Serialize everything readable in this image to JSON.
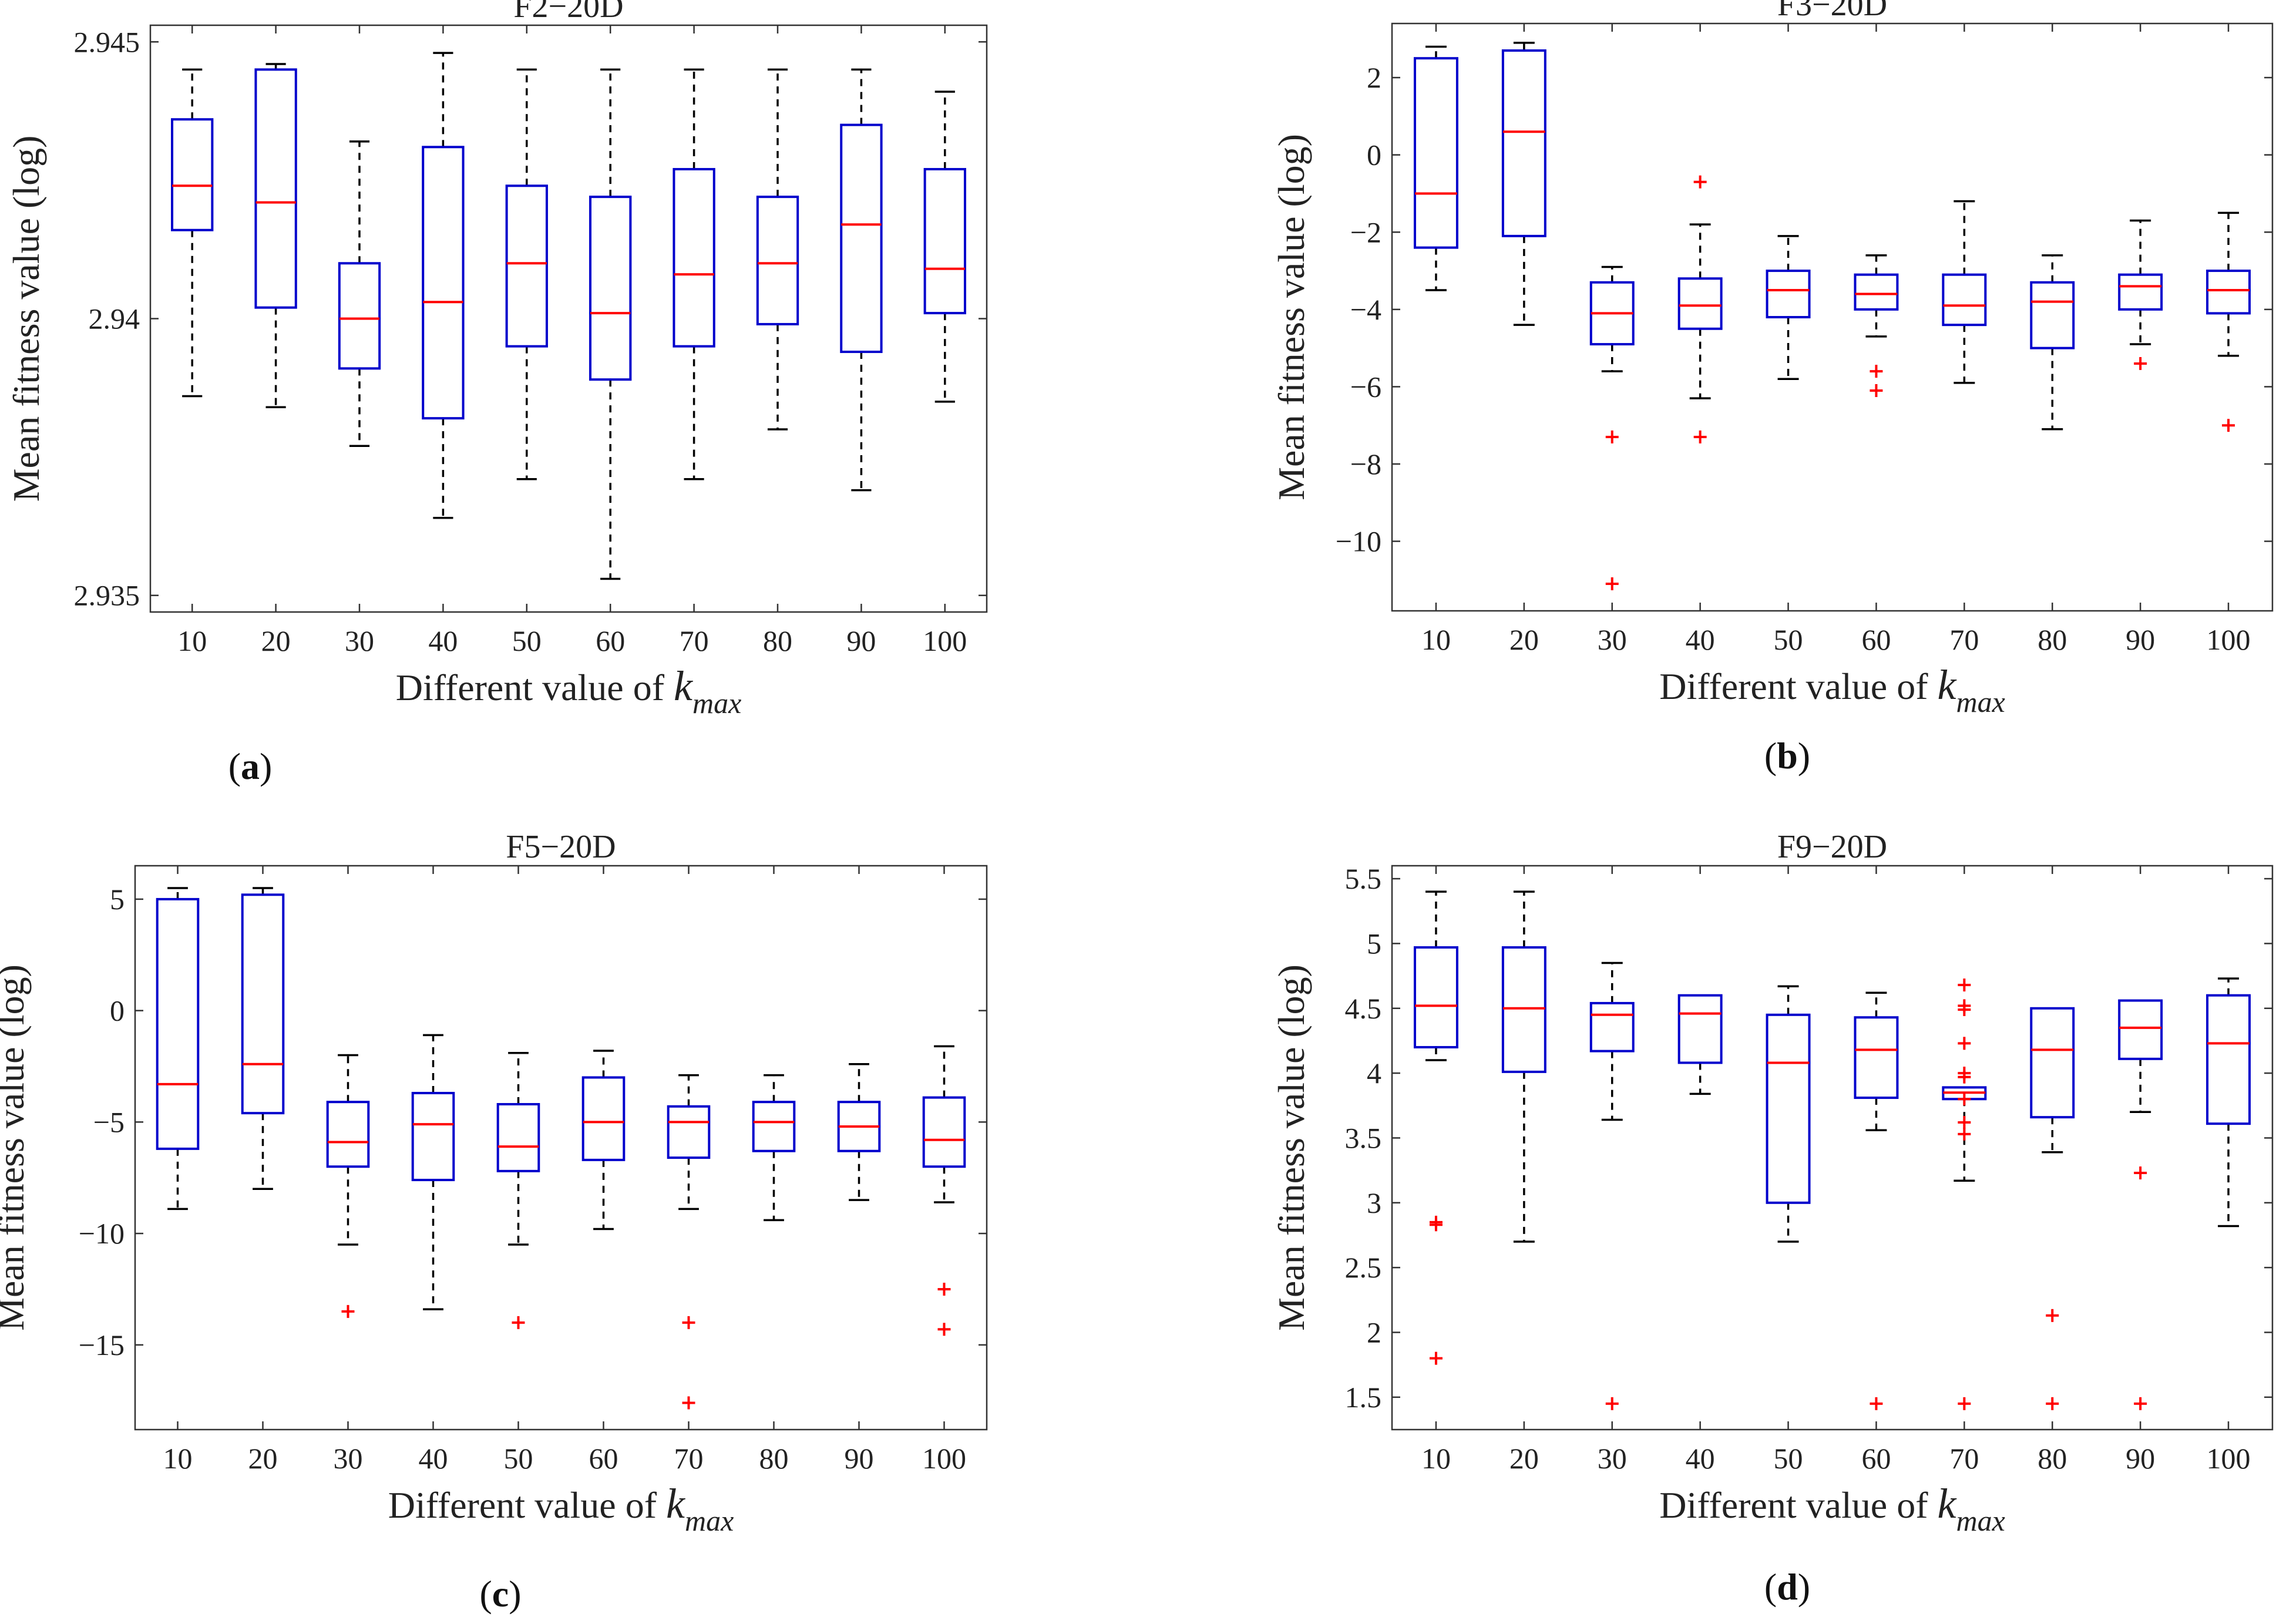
{
  "figure": {
    "captions": [
      "(a)",
      "(b)",
      "(c)",
      "(d)"
    ],
    "caption_parts": [
      {
        "open": "(",
        "letter": "a",
        "close": ")"
      },
      {
        "open": "(",
        "letter": "b",
        "close": ")"
      },
      {
        "open": "(",
        "letter": "c",
        "close": ")"
      },
      {
        "open": "(",
        "letter": "d",
        "close": ")"
      }
    ],
    "colors": {
      "box": "#0000cc",
      "median": "#ff0000",
      "whisker": "#000000",
      "outlier": "#ff0000"
    }
  },
  "chart_data": [
    {
      "type": "box",
      "title": "F2−20D",
      "xlabel": "Different value of ",
      "xlabel_italic": "k",
      "xlabel_sub": "max",
      "ylabel": "Mean fitness value (log)",
      "categories": [
        "10",
        "20",
        "30",
        "40",
        "50",
        "60",
        "70",
        "80",
        "90",
        "100"
      ],
      "ylim": [
        2.9347,
        2.9453
      ],
      "yticks": [
        2.935,
        2.94,
        2.945
      ],
      "ytick_labels": [
        "2.935",
        "2.94",
        "2.945"
      ],
      "boxes": [
        {
          "whislo": 2.9386,
          "q1": 2.9416,
          "med": 2.9424,
          "q3": 2.9436,
          "whishi": 2.9445,
          "fliers": []
        },
        {
          "whislo": 2.9384,
          "q1": 2.9402,
          "med": 2.9421,
          "q3": 2.9445,
          "whishi": 2.9446,
          "fliers": []
        },
        {
          "whislo": 2.9377,
          "q1": 2.9391,
          "med": 2.94,
          "q3": 2.941,
          "whishi": 2.9432,
          "fliers": []
        },
        {
          "whislo": 2.9364,
          "q1": 2.9382,
          "med": 2.9403,
          "q3": 2.9431,
          "whishi": 2.9448,
          "fliers": []
        },
        {
          "whislo": 2.9371,
          "q1": 2.9395,
          "med": 2.941,
          "q3": 2.9424,
          "whishi": 2.9445,
          "fliers": []
        },
        {
          "whislo": 2.9353,
          "q1": 2.9389,
          "med": 2.9401,
          "q3": 2.9422,
          "whishi": 2.9445,
          "fliers": []
        },
        {
          "whislo": 2.9371,
          "q1": 2.9395,
          "med": 2.9408,
          "q3": 2.9427,
          "whishi": 2.9445,
          "fliers": []
        },
        {
          "whislo": 2.938,
          "q1": 2.9399,
          "med": 2.941,
          "q3": 2.9422,
          "whishi": 2.9445,
          "fliers": []
        },
        {
          "whislo": 2.9369,
          "q1": 2.9394,
          "med": 2.9417,
          "q3": 2.9435,
          "whishi": 2.9445,
          "fliers": []
        },
        {
          "whislo": 2.9385,
          "q1": 2.9401,
          "med": 2.9409,
          "q3": 2.9427,
          "whishi": 2.9441,
          "fliers": []
        }
      ]
    },
    {
      "type": "box",
      "title": "F3−20D",
      "xlabel": "Different value of ",
      "xlabel_italic": "k",
      "xlabel_sub": "max",
      "ylabel": "Mean fitness value (log)",
      "categories": [
        "10",
        "20",
        "30",
        "40",
        "50",
        "60",
        "70",
        "80",
        "90",
        "100"
      ],
      "ylim": [
        -11.8,
        3.4
      ],
      "yticks": [
        2,
        0,
        -2,
        -4,
        -6,
        -8,
        -10
      ],
      "ytick_labels": [
        "2",
        "0",
        "−2",
        "−4",
        "−6",
        "−8",
        "−10"
      ],
      "boxes": [
        {
          "whislo": -3.5,
          "q1": -2.4,
          "med": -1.0,
          "q3": 2.5,
          "whishi": 2.8,
          "fliers": []
        },
        {
          "whislo": -4.4,
          "q1": -2.1,
          "med": 0.6,
          "q3": 2.7,
          "whishi": 2.9,
          "fliers": []
        },
        {
          "whislo": -5.6,
          "q1": -4.9,
          "med": -4.1,
          "q3": -3.3,
          "whishi": -2.9,
          "fliers": [
            -7.3,
            -11.1
          ]
        },
        {
          "whislo": -6.3,
          "q1": -4.5,
          "med": -3.9,
          "q3": -3.2,
          "whishi": -1.8,
          "fliers": [
            -0.7,
            -7.3
          ]
        },
        {
          "whislo": -5.8,
          "q1": -4.2,
          "med": -3.5,
          "q3": -3.0,
          "whishi": -2.1,
          "fliers": []
        },
        {
          "whislo": -4.7,
          "q1": -4.0,
          "med": -3.6,
          "q3": -3.1,
          "whishi": -2.6,
          "fliers": [
            -5.6,
            -6.1
          ]
        },
        {
          "whislo": -5.9,
          "q1": -4.4,
          "med": -3.9,
          "q3": -3.1,
          "whishi": -1.2,
          "fliers": []
        },
        {
          "whislo": -7.1,
          "q1": -5.0,
          "med": -3.8,
          "q3": -3.3,
          "whishi": -2.6,
          "fliers": []
        },
        {
          "whislo": -4.9,
          "q1": -4.0,
          "med": -3.4,
          "q3": -3.1,
          "whishi": -1.7,
          "fliers": [
            -5.4
          ]
        },
        {
          "whislo": -5.2,
          "q1": -4.1,
          "med": -3.5,
          "q3": -3.0,
          "whishi": -1.5,
          "fliers": [
            -7.0
          ]
        }
      ]
    },
    {
      "type": "box",
      "title": "F5−20D",
      "xlabel": "Different value of ",
      "xlabel_italic": "k",
      "xlabel_sub": "max",
      "ylabel": "Mean fitness value (log)",
      "categories": [
        "10",
        "20",
        "30",
        "40",
        "50",
        "60",
        "70",
        "80",
        "90",
        "100"
      ],
      "ylim": [
        -18.8,
        6.5
      ],
      "yticks": [
        5,
        0,
        -5,
        -10,
        -15
      ],
      "ytick_labels": [
        "5",
        "0",
        "−5",
        "−10",
        "−15"
      ],
      "boxes": [
        {
          "whislo": -8.9,
          "q1": -6.2,
          "med": -3.3,
          "q3": 5.0,
          "whishi": 5.5,
          "fliers": []
        },
        {
          "whislo": -8.0,
          "q1": -4.6,
          "med": -2.4,
          "q3": 5.2,
          "whishi": 5.5,
          "fliers": []
        },
        {
          "whislo": -10.5,
          "q1": -7.0,
          "med": -5.9,
          "q3": -4.1,
          "whishi": -2.0,
          "fliers": [
            -13.5
          ]
        },
        {
          "whislo": -13.4,
          "q1": -7.6,
          "med": -5.1,
          "q3": -3.7,
          "whishi": -1.1,
          "fliers": []
        },
        {
          "whislo": -10.5,
          "q1": -7.2,
          "med": -6.1,
          "q3": -4.2,
          "whishi": -1.9,
          "fliers": [
            -14.0
          ]
        },
        {
          "whislo": -9.8,
          "q1": -6.7,
          "med": -5.0,
          "q3": -3.0,
          "whishi": -1.8,
          "fliers": []
        },
        {
          "whislo": -8.9,
          "q1": -6.6,
          "med": -5.0,
          "q3": -4.3,
          "whishi": -2.9,
          "fliers": [
            -14.0,
            -17.6
          ]
        },
        {
          "whislo": -9.4,
          "q1": -6.3,
          "med": -5.0,
          "q3": -4.1,
          "whishi": -2.9,
          "fliers": []
        },
        {
          "whislo": -8.5,
          "q1": -6.3,
          "med": -5.2,
          "q3": -4.1,
          "whishi": -2.4,
          "fliers": []
        },
        {
          "whislo": -8.6,
          "q1": -7.0,
          "med": -5.8,
          "q3": -3.9,
          "whishi": -1.6,
          "fliers": [
            -12.5,
            -14.3
          ]
        }
      ]
    },
    {
      "type": "box",
      "title": "F9−20D",
      "xlabel": "Different value of ",
      "xlabel_italic": "k",
      "xlabel_sub": "max",
      "ylabel": "Mean fitness value (log)",
      "categories": [
        "10",
        "20",
        "30",
        "40",
        "50",
        "60",
        "70",
        "80",
        "90",
        "100"
      ],
      "ylim": [
        1.25,
        5.6
      ],
      "yticks": [
        5.5,
        5,
        4.5,
        4,
        3.5,
        3,
        2.5,
        2,
        1.5
      ],
      "ytick_labels": [
        "5.5",
        "5",
        "4.5",
        "4",
        "3.5",
        "3",
        "2.5",
        "2",
        "1.5"
      ],
      "boxes": [
        {
          "whislo": 4.1,
          "q1": 4.2,
          "med": 4.52,
          "q3": 4.97,
          "whishi": 5.4,
          "fliers": [
            2.85,
            2.83,
            1.8
          ]
        },
        {
          "whislo": 2.7,
          "q1": 4.01,
          "med": 4.5,
          "q3": 4.97,
          "whishi": 5.4,
          "fliers": []
        },
        {
          "whislo": 3.64,
          "q1": 4.17,
          "med": 4.45,
          "q3": 4.54,
          "whishi": 4.85,
          "fliers": [
            1.45
          ]
        },
        {
          "whislo": 3.84,
          "q1": 4.08,
          "med": 4.46,
          "q3": 4.6,
          "whishi": 4.6,
          "fliers": []
        },
        {
          "whislo": 2.7,
          "q1": 3.0,
          "med": 4.08,
          "q3": 4.45,
          "whishi": 4.67,
          "fliers": []
        },
        {
          "whislo": 3.56,
          "q1": 3.81,
          "med": 4.18,
          "q3": 4.43,
          "whishi": 4.62,
          "fliers": [
            1.45
          ]
        },
        {
          "whislo": 3.17,
          "q1": 3.8,
          "med": 3.85,
          "q3": 3.89,
          "whishi": 3.89,
          "fliers": [
            4.68,
            4.52,
            4.49,
            4.23,
            4.0,
            3.97,
            3.8,
            3.62,
            3.53,
            1.45
          ]
        },
        {
          "whislo": 3.39,
          "q1": 3.66,
          "med": 4.18,
          "q3": 4.5,
          "whishi": 4.5,
          "fliers": [
            2.13,
            1.45
          ]
        },
        {
          "whislo": 3.7,
          "q1": 4.11,
          "med": 4.35,
          "q3": 4.56,
          "whishi": 4.56,
          "fliers": [
            3.23,
            1.45
          ]
        },
        {
          "whislo": 2.82,
          "q1": 3.61,
          "med": 4.23,
          "q3": 4.6,
          "whishi": 4.73,
          "fliers": []
        }
      ]
    }
  ]
}
